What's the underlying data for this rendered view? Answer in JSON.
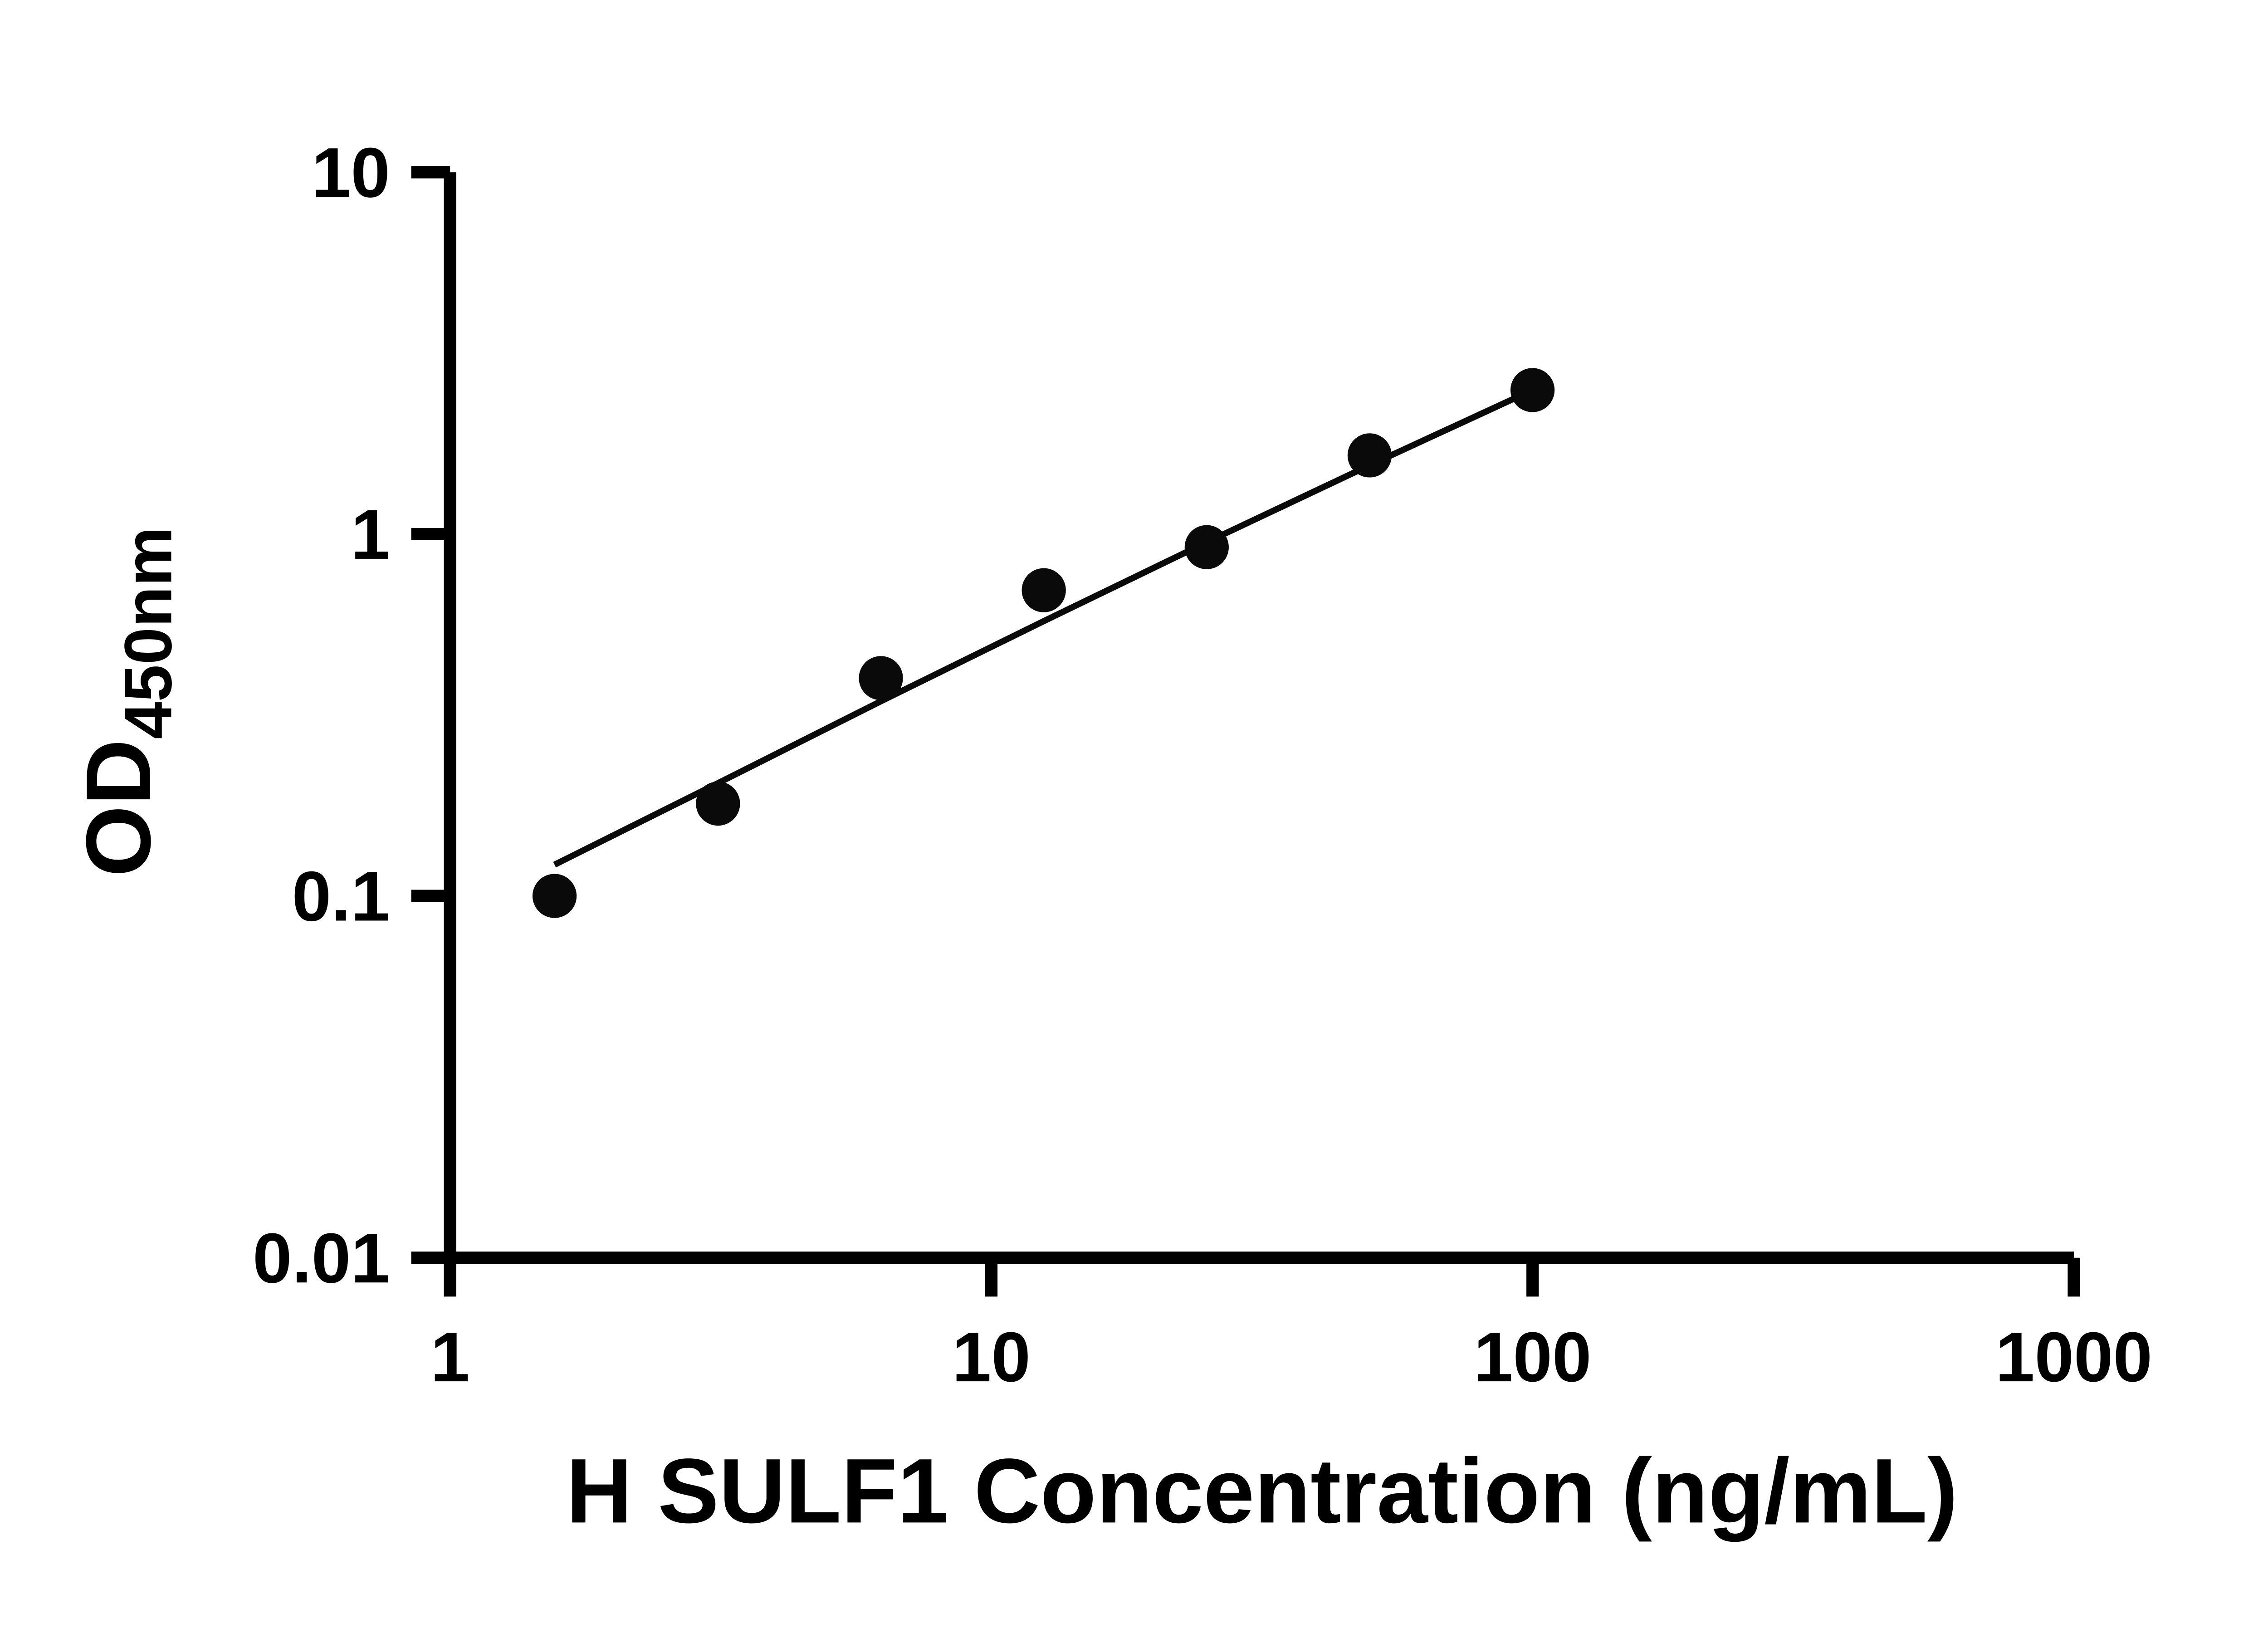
{
  "figure": {
    "background_color": "#ffffff"
  },
  "chart_data": {
    "type": "scatter",
    "title": "",
    "xlabel": "H SULF1 Concentration (ng/mL)",
    "ylabel_main": "OD",
    "ylabel_sub": "450nm",
    "x_scale": "log",
    "y_scale": "log",
    "xlim": [
      1,
      1000
    ],
    "ylim": [
      0.01,
      10
    ],
    "x_ticks": [
      1,
      10,
      100,
      1000
    ],
    "x_tick_labels": [
      "1",
      "10",
      "100",
      "1000"
    ],
    "y_ticks": [
      0.01,
      0.1,
      1,
      10
    ],
    "y_tick_labels": [
      "0.01",
      "0.1",
      "1",
      "10"
    ],
    "grid": false,
    "legend": false,
    "points": [
      {
        "x": 1.56,
        "y": 0.1
      },
      {
        "x": 3.125,
        "y": 0.18
      },
      {
        "x": 6.25,
        "y": 0.4
      },
      {
        "x": 12.5,
        "y": 0.7
      },
      {
        "x": 25,
        "y": 0.92
      },
      {
        "x": 50,
        "y": 1.65
      },
      {
        "x": 100,
        "y": 2.5
      }
    ],
    "fit_curve": [
      {
        "x": 1.56,
        "y": 0.122
      },
      {
        "x": 3.125,
        "y": 0.205
      },
      {
        "x": 6.25,
        "y": 0.345
      },
      {
        "x": 12.5,
        "y": 0.575
      },
      {
        "x": 25,
        "y": 0.95
      },
      {
        "x": 50,
        "y": 1.55
      },
      {
        "x": 100,
        "y": 2.5
      }
    ],
    "marker_color": "#0a0a0a",
    "marker_radius": 12.5,
    "line_color": "#0a0a0a",
    "line_width": 3.5,
    "axis_color": "#000000",
    "axis_line_width": 7,
    "tick_length": 22
  }
}
